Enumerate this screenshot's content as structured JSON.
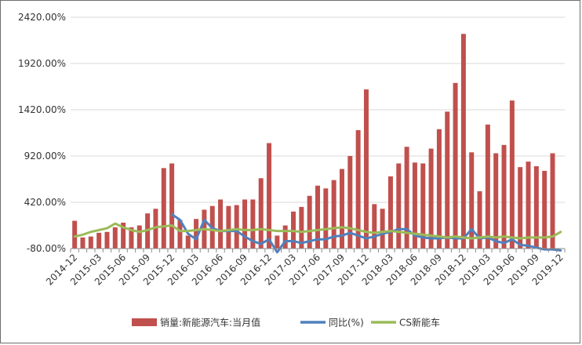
{
  "chart_data": {
    "type": "bar",
    "ylim": [
      -80,
      2420
    ],
    "yticks": [
      -80,
      420,
      920,
      1420,
      1920,
      2420
    ],
    "ytick_labels": [
      "-80.00%",
      "420.00%",
      "920.00%",
      "1420.00%",
      "1920.00%",
      "2420.00%"
    ],
    "categories": [
      "2014-12",
      "2015-01",
      "2015-02",
      "2015-03",
      "2015-04",
      "2015-05",
      "2015-06",
      "2015-07",
      "2015-08",
      "2015-09",
      "2015-10",
      "2015-11",
      "2015-12",
      "2016-01",
      "2016-02",
      "2016-03",
      "2016-04",
      "2016-05",
      "2016-06",
      "2016-07",
      "2016-08",
      "2016-09",
      "2016-10",
      "2016-11",
      "2016-12",
      "2017-01",
      "2017-02",
      "2017-03",
      "2017-04",
      "2017-05",
      "2017-06",
      "2017-07",
      "2017-08",
      "2017-09",
      "2017-10",
      "2017-11",
      "2017-12",
      "2018-01",
      "2018-02",
      "2018-03",
      "2018-04",
      "2018-05",
      "2018-06",
      "2018-07",
      "2018-08",
      "2018-09",
      "2018-10",
      "2018-11",
      "2018-12",
      "2019-01",
      "2019-02",
      "2019-03",
      "2019-04",
      "2019-05",
      "2019-06",
      "2019-07",
      "2019-08",
      "2019-09",
      "2019-10",
      "2019-11",
      "2019-12"
    ],
    "xtick_labels": [
      "2014-12",
      "2015-03",
      "2015-06",
      "2015-09",
      "2015-12",
      "2016-03",
      "2016-06",
      "2016-09",
      "2016-12",
      "2017-03",
      "2017-06",
      "2017-09",
      "2017-12",
      "2018-03",
      "2018-06",
      "2018-09",
      "2018-12",
      "2019-03",
      "2019-06",
      "2019-09",
      "2019-12"
    ],
    "series": [
      {
        "name": "销量:新能源汽车:当月值",
        "type": "bar",
        "color": "#c0504d",
        "values": [
          220,
          40,
          50,
          90,
          100,
          150,
          200,
          150,
          170,
          300,
          350,
          790,
          840,
          230,
          60,
          240,
          340,
          380,
          450,
          380,
          390,
          450,
          450,
          680,
          1060,
          60,
          170,
          320,
          370,
          490,
          600,
          570,
          660,
          780,
          920,
          1200,
          1640,
          400,
          350,
          700,
          840,
          1020,
          850,
          840,
          1000,
          1210,
          1400,
          1710,
          2240,
          960,
          540,
          1260,
          950,
          1040,
          1520,
          800,
          860,
          810,
          760,
          950,
          null
        ]
      },
      {
        "name": "同比(%)",
        "type": "line",
        "color": "#4f81bd",
        "values": [
          null,
          null,
          null,
          null,
          null,
          null,
          null,
          null,
          null,
          null,
          null,
          null,
          290,
          230,
          80,
          20,
          230,
          140,
          110,
          110,
          110,
          50,
          0,
          -30,
          20,
          -120,
          0,
          0,
          -20,
          0,
          20,
          20,
          50,
          60,
          90,
          60,
          30,
          50,
          80,
          100,
          130,
          130,
          60,
          40,
          30,
          30,
          40,
          30,
          30,
          130,
          30,
          40,
          0,
          -20,
          20,
          -40,
          -50,
          -70,
          -90,
          -90,
          -100
        ]
      },
      {
        "name": "CS新能车",
        "type": "line",
        "color": "#9bbb59",
        "values": [
          50,
          70,
          100,
          120,
          140,
          190,
          150,
          120,
          100,
          120,
          150,
          160,
          170,
          110,
          110,
          120,
          130,
          120,
          110,
          120,
          130,
          120,
          120,
          130,
          120,
          110,
          110,
          110,
          100,
          110,
          120,
          130,
          140,
          150,
          140,
          120,
          100,
          90,
          100,
          110,
          100,
          90,
          80,
          70,
          60,
          50,
          40,
          50,
          40,
          30,
          40,
          50,
          40,
          50,
          40,
          30,
          40,
          40,
          40,
          50,
          100
        ]
      }
    ]
  }
}
